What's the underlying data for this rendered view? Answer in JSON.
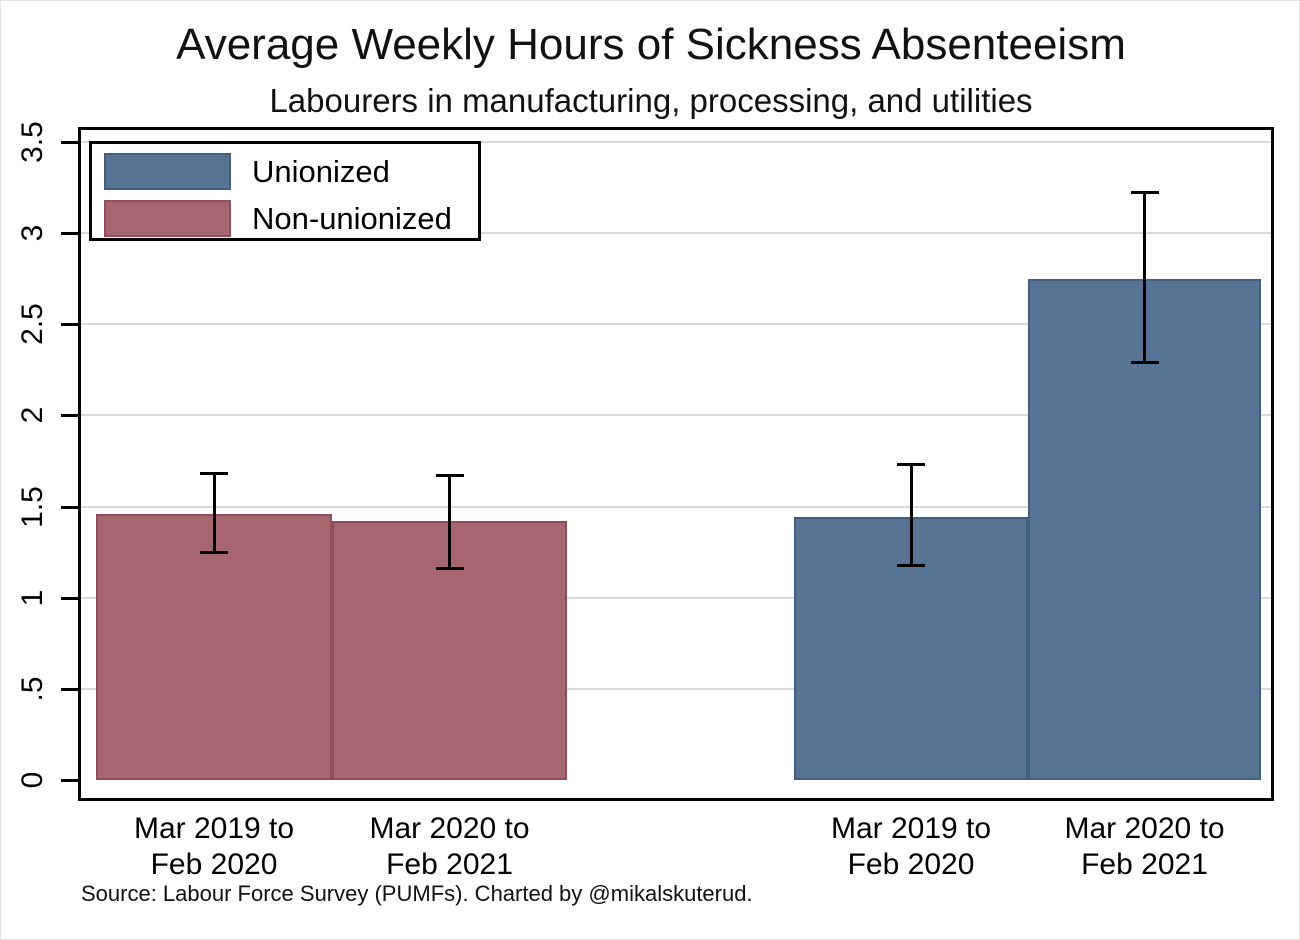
{
  "figure": {
    "title": "Average Weekly Hours of Sickness Absenteeism",
    "subtitle": "Labourers in manufacturing, processing, and utilities",
    "source_note": "Source: Labour Force Survey (PUMFs). Charted by @mikalskuterud."
  },
  "legend": {
    "items": [
      {
        "label": "Unionized",
        "color_key": "unionized"
      },
      {
        "label": "Non-unionized",
        "color_key": "nonunionized"
      }
    ]
  },
  "colors": {
    "unionized_fill": "#587494",
    "unionized_border": "#40607f",
    "nonunionized_fill": "#a7666f",
    "nonunionized_border": "#8f4e5a",
    "errorbar": "#000000",
    "gridline": "#d9d9d9",
    "axis": "#000000"
  },
  "chart_data": {
    "type": "bar",
    "title": "Average Weekly Hours of Sickness Absenteeism",
    "subtitle": "Labourers in manufacturing, processing, and utilities",
    "xlabel": "",
    "ylabel": "",
    "ylim": [
      0,
      3.5
    ],
    "grid": true,
    "error_bars": true,
    "legend_position": "top-left-inside",
    "yticks": [
      {
        "value": 0,
        "label": "0"
      },
      {
        "value": 0.5,
        "label": ".5"
      },
      {
        "value": 1,
        "label": "1"
      },
      {
        "value": 1.5,
        "label": "1.5"
      },
      {
        "value": 2,
        "label": "2"
      },
      {
        "value": 2.5,
        "label": "2.5"
      },
      {
        "value": 3,
        "label": "3"
      },
      {
        "value": 3.5,
        "label": "3.5"
      }
    ],
    "groups": [
      {
        "series": "Non-unionized",
        "color_key": "nonunionized",
        "bars": [
          {
            "category": "Mar 2019 to Feb 2020",
            "label_lines": [
              "Mar 2019 to",
              "Feb 2020"
            ],
            "value": 1.46,
            "ci_low": 1.24,
            "ci_high": 1.69
          },
          {
            "category": "Mar 2020 to Feb 2021",
            "label_lines": [
              "Mar 2020 to",
              "Feb 2021"
            ],
            "value": 1.42,
            "ci_low": 1.15,
            "ci_high": 1.68
          }
        ]
      },
      {
        "series": "Unionized",
        "color_key": "unionized",
        "bars": [
          {
            "category": "Mar 2019 to Feb 2020",
            "label_lines": [
              "Mar 2019 to",
              "Feb 2020"
            ],
            "value": 1.44,
            "ci_low": 1.17,
            "ci_high": 1.74
          },
          {
            "category": "Mar 2020 to Feb 2021",
            "label_lines": [
              "Mar 2020 to",
              "Feb 2021"
            ],
            "value": 2.75,
            "ci_low": 2.28,
            "ci_high": 3.23
          }
        ]
      }
    ]
  }
}
